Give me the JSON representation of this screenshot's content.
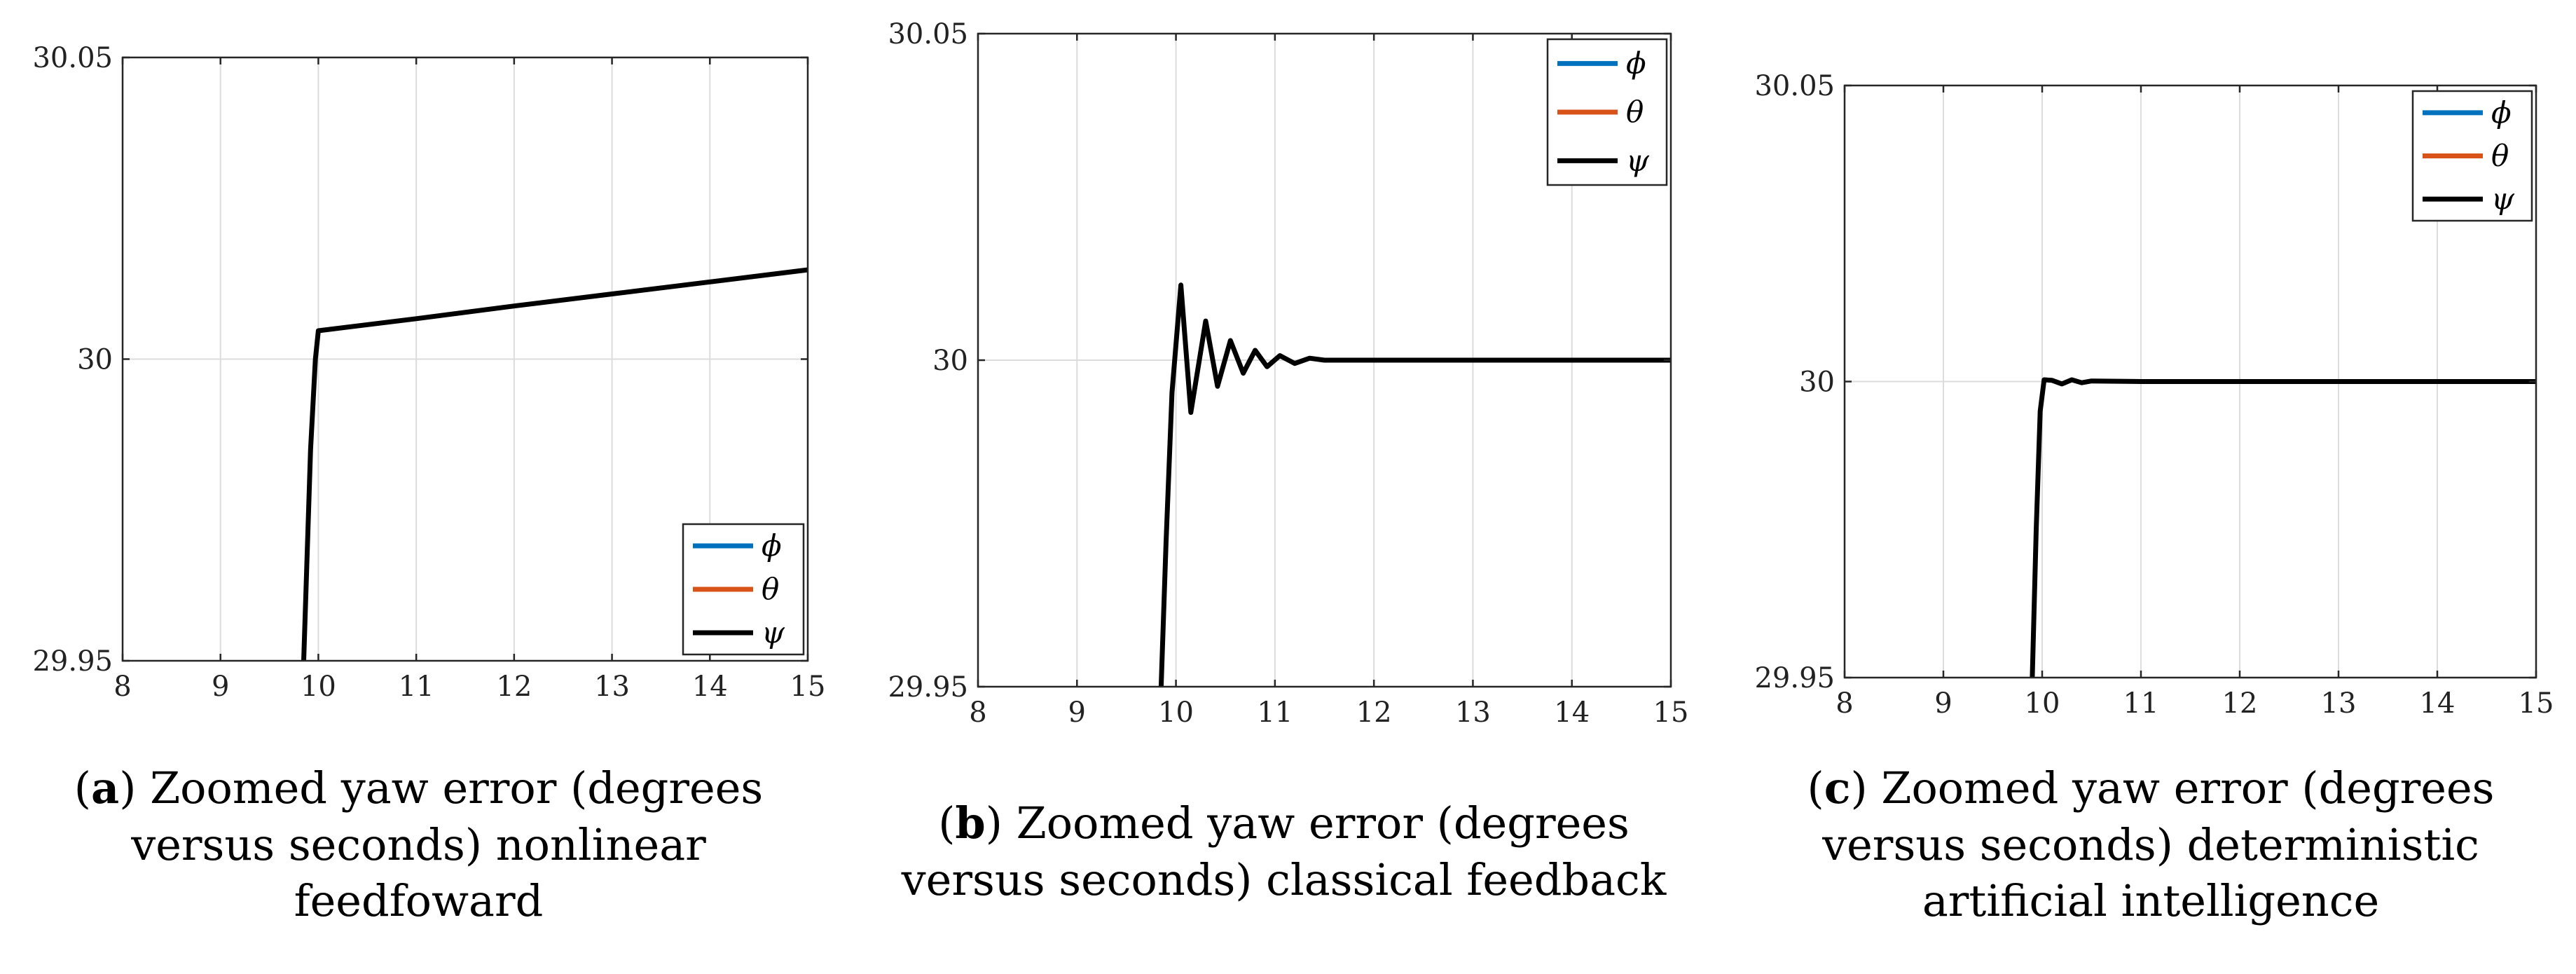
{
  "chart_data": [
    {
      "type": "line",
      "panel_letter": "a",
      "caption": ") Zoomed yaw error (degrees versus seconds) nonlinear feedfoward",
      "xlim": [
        8,
        15
      ],
      "ylim": [
        29.95,
        30.05
      ],
      "xticks": [
        "8",
        "9",
        "10",
        "11",
        "12",
        "13",
        "14",
        "15"
      ],
      "yticks": [
        "29.95",
        "30",
        "30.05"
      ],
      "grid": true,
      "legend_position": "bottom-right",
      "series": [
        {
          "name": "ϕ",
          "color": "#0072BD",
          "x": [],
          "y": []
        },
        {
          "name": "θ",
          "color": "#D95319",
          "x": [],
          "y": []
        },
        {
          "name": "ψ",
          "color": "#000000",
          "x": [
            9.85,
            9.88,
            9.92,
            9.97,
            10.0,
            11.0,
            12.0,
            13.0,
            14.0,
            15.0
          ],
          "y": [
            29.95,
            29.965,
            29.985,
            30.0,
            30.0047,
            30.0067,
            30.0088,
            30.0108,
            30.0128,
            30.0148
          ]
        }
      ]
    },
    {
      "type": "line",
      "panel_letter": "b",
      "caption": ") Zoomed yaw error (degrees versus seconds) classical feedback",
      "xlim": [
        8,
        15
      ],
      "ylim": [
        29.95,
        30.05
      ],
      "xticks": [
        "8",
        "9",
        "10",
        "11",
        "12",
        "13",
        "14",
        "15"
      ],
      "yticks": [
        "29.95",
        "30",
        "30.05"
      ],
      "grid": true,
      "legend_position": "top-right",
      "series": [
        {
          "name": "ϕ",
          "color": "#0072BD",
          "x": [],
          "y": []
        },
        {
          "name": "θ",
          "color": "#D95319",
          "x": [],
          "y": []
        },
        {
          "name": "ψ",
          "color": "#000000",
          "x": [
            9.85,
            9.9,
            9.96,
            10.05,
            10.15,
            10.3,
            10.42,
            10.55,
            10.68,
            10.8,
            10.92,
            11.05,
            11.2,
            11.35,
            11.5,
            12.0,
            13.0,
            14.0,
            15.0
          ],
          "y": [
            29.95,
            29.972,
            29.995,
            30.0115,
            29.992,
            30.006,
            29.996,
            30.003,
            29.998,
            30.0015,
            29.999,
            30.0007,
            29.9995,
            30.0003,
            30.0,
            30.0,
            30.0,
            30.0,
            30.0
          ]
        }
      ]
    },
    {
      "type": "line",
      "panel_letter": "c",
      "caption": ") Zoomed yaw error (degrees versus seconds) deterministic artificial intelligence",
      "xlim": [
        8,
        15
      ],
      "ylim": [
        29.95,
        30.05
      ],
      "xticks": [
        "8",
        "9",
        "10",
        "11",
        "12",
        "13",
        "14",
        "15"
      ],
      "yticks": [
        "29.95",
        "30",
        "30.05"
      ],
      "grid": true,
      "legend_position": "top-right",
      "series": [
        {
          "name": "ϕ",
          "color": "#0072BD",
          "x": [],
          "y": []
        },
        {
          "name": "θ",
          "color": "#D95319",
          "x": [],
          "y": []
        },
        {
          "name": "ψ",
          "color": "#000000",
          "x": [
            9.9,
            9.94,
            9.98,
            10.02,
            10.1,
            10.2,
            10.3,
            10.4,
            10.5,
            11.0,
            12.0,
            13.0,
            14.0,
            15.0
          ],
          "y": [
            29.95,
            29.975,
            29.995,
            30.0003,
            30.0002,
            29.9996,
            30.0003,
            29.9998,
            30.0001,
            30.0,
            30.0,
            30.0,
            30.0,
            30.0
          ]
        }
      ]
    }
  ]
}
